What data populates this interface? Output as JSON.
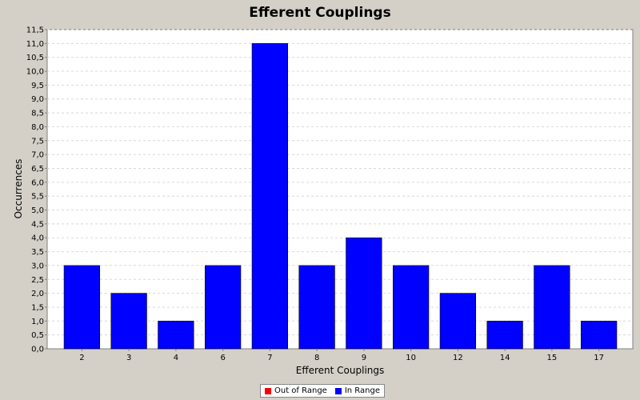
{
  "chart_data": {
    "type": "bar",
    "title": "Efferent Couplings",
    "xlabel": "Efferent Couplings",
    "ylabel": "Occurrences",
    "categories": [
      "2",
      "3",
      "4",
      "6",
      "7",
      "8",
      "9",
      "10",
      "12",
      "14",
      "15",
      "17"
    ],
    "series": [
      {
        "name": "In Range",
        "values": [
          3,
          2,
          1,
          3,
          11,
          3,
          4,
          3,
          2,
          1,
          3,
          1
        ]
      }
    ],
    "ylim": [
      0,
      11.5
    ],
    "y_ticks": [
      "0,0",
      "0,5",
      "1,0",
      "1,5",
      "2,0",
      "2,5",
      "3,0",
      "3,5",
      "4,0",
      "4,5",
      "5,0",
      "5,5",
      "6,0",
      "6,5",
      "7,0",
      "7,5",
      "8,0",
      "8,5",
      "9,0",
      "9,5",
      "10,0",
      "10,5",
      "11,0",
      "11,5"
    ],
    "grid": true,
    "legend_position": "bottom"
  },
  "legend": [
    {
      "label": "Out of Range",
      "color": "#ff0000"
    },
    {
      "label": "In Range",
      "color": "#0000ff"
    }
  ],
  "colors": {
    "plot_bg": "#ffffff",
    "grid": "#d8d8d8",
    "bar_fill": "#0000ff",
    "bar_stroke": "#000000"
  }
}
